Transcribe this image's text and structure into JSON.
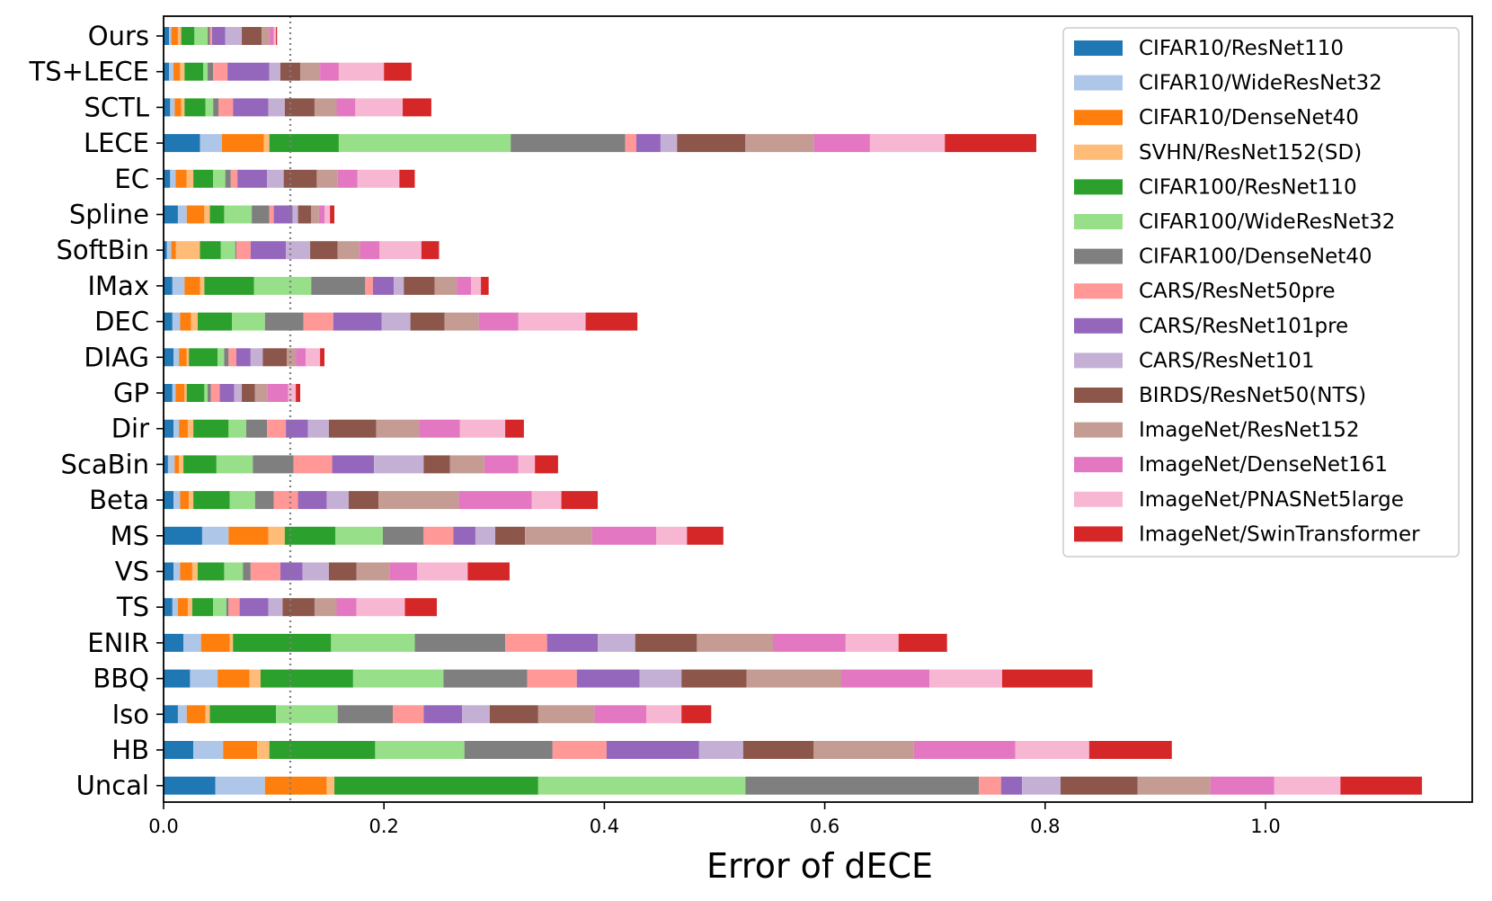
{
  "chart_data": {
    "type": "bar",
    "orientation": "horizontal",
    "stacked": true,
    "title": "",
    "xlabel": "Error of dECE",
    "ylabel": "",
    "xlim": [
      0,
      1.18
    ],
    "xticks": [
      0.0,
      0.2,
      0.4,
      0.6,
      0.8,
      1.0
    ],
    "xtick_labels": [
      "0.0",
      "0.2",
      "0.4",
      "0.6",
      "0.8",
      "1.0"
    ],
    "reference_line": {
      "x": 0.115,
      "style": "dotted",
      "color": "#7f7f7f"
    },
    "legend_position": "top-right",
    "categories": [
      "Ours",
      "TS+LECE",
      "SCTL",
      "LECE",
      "EC",
      "Spline",
      "SoftBin",
      "IMax",
      "DEC",
      "DIAG",
      "GP",
      "Dir",
      "ScaBin",
      "Beta",
      "MS",
      "VS",
      "TS",
      "ENIR",
      "BBQ",
      "Iso",
      "HB",
      "Uncal"
    ],
    "series": [
      {
        "name": "CIFAR10/ResNet110",
        "color": "#1f77b4",
        "values": [
          0.005,
          0.005,
          0.006,
          0.033,
          0.006,
          0.013,
          0.003,
          0.008,
          0.008,
          0.009,
          0.008,
          0.009,
          0.004,
          0.009,
          0.035,
          0.009,
          0.008,
          0.018,
          0.024,
          0.013,
          0.027,
          0.047
        ]
      },
      {
        "name": "CIFAR10/WideResNet32",
        "color": "#aec7e8",
        "values": [
          0.002,
          0.004,
          0.004,
          0.02,
          0.005,
          0.008,
          0.004,
          0.011,
          0.007,
          0.005,
          0.003,
          0.005,
          0.006,
          0.006,
          0.024,
          0.006,
          0.005,
          0.016,
          0.025,
          0.008,
          0.027,
          0.045
        ]
      },
      {
        "name": "CIFAR10/DenseNet40",
        "color": "#ff7f0e",
        "values": [
          0.006,
          0.006,
          0.006,
          0.038,
          0.01,
          0.016,
          0.004,
          0.014,
          0.01,
          0.007,
          0.008,
          0.008,
          0.004,
          0.008,
          0.036,
          0.011,
          0.009,
          0.026,
          0.029,
          0.017,
          0.031,
          0.056
        ]
      },
      {
        "name": "SVHN/ResNet152(SD)",
        "color": "#ffbb78",
        "values": [
          0.003,
          0.004,
          0.003,
          0.005,
          0.006,
          0.005,
          0.022,
          0.004,
          0.006,
          0.002,
          0.002,
          0.005,
          0.004,
          0.004,
          0.015,
          0.005,
          0.004,
          0.003,
          0.01,
          0.004,
          0.011,
          0.007
        ]
      },
      {
        "name": "CIFAR100/ResNet110",
        "color": "#2ca02c",
        "values": [
          0.012,
          0.017,
          0.019,
          0.063,
          0.018,
          0.013,
          0.019,
          0.045,
          0.031,
          0.026,
          0.016,
          0.032,
          0.03,
          0.033,
          0.046,
          0.024,
          0.019,
          0.089,
          0.084,
          0.06,
          0.096,
          0.185
        ]
      },
      {
        "name": "CIFAR100/WideResNet32",
        "color": "#98df8a",
        "values": [
          0.012,
          0.004,
          0.007,
          0.156,
          0.011,
          0.025,
          0.013,
          0.052,
          0.03,
          0.006,
          0.003,
          0.016,
          0.033,
          0.023,
          0.043,
          0.017,
          0.012,
          0.076,
          0.082,
          0.056,
          0.081,
          0.188
        ]
      },
      {
        "name": "CIFAR100/DenseNet40",
        "color": "#7f7f7f",
        "values": [
          0.002,
          0.005,
          0.005,
          0.104,
          0.005,
          0.016,
          0.001,
          0.049,
          0.035,
          0.004,
          0.003,
          0.019,
          0.037,
          0.017,
          0.037,
          0.007,
          0.002,
          0.082,
          0.076,
          0.05,
          0.08,
          0.212
        ]
      },
      {
        "name": "CARS/ResNet50pre",
        "color": "#ff9896",
        "values": [
          0.002,
          0.013,
          0.013,
          0.01,
          0.006,
          0.004,
          0.013,
          0.007,
          0.027,
          0.007,
          0.008,
          0.017,
          0.035,
          0.022,
          0.027,
          0.027,
          0.01,
          0.038,
          0.045,
          0.028,
          0.049,
          0.02
        ]
      },
      {
        "name": "CARS/ResNet101pre",
        "color": "#9467bd",
        "values": [
          0.012,
          0.038,
          0.032,
          0.022,
          0.027,
          0.017,
          0.032,
          0.019,
          0.044,
          0.013,
          0.013,
          0.02,
          0.038,
          0.026,
          0.02,
          0.02,
          0.026,
          0.046,
          0.057,
          0.035,
          0.084,
          0.019
        ]
      },
      {
        "name": "CARS/ResNet101",
        "color": "#c5b0d5",
        "values": [
          0.015,
          0.01,
          0.015,
          0.015,
          0.015,
          0.005,
          0.022,
          0.009,
          0.026,
          0.011,
          0.007,
          0.019,
          0.045,
          0.02,
          0.018,
          0.024,
          0.013,
          0.034,
          0.038,
          0.025,
          0.04,
          0.035
        ]
      },
      {
        "name": "BIRDS/ResNet50(NTS)",
        "color": "#8c564b",
        "values": [
          0.018,
          0.018,
          0.027,
          0.062,
          0.03,
          0.012,
          0.025,
          0.028,
          0.031,
          0.022,
          0.012,
          0.043,
          0.024,
          0.027,
          0.027,
          0.025,
          0.029,
          0.056,
          0.059,
          0.044,
          0.064,
          0.07
        ]
      },
      {
        "name": "ImageNet/ResNet152",
        "color": "#c49c94",
        "values": [
          0.007,
          0.018,
          0.02,
          0.062,
          0.019,
          0.007,
          0.02,
          0.02,
          0.031,
          0.008,
          0.011,
          0.039,
          0.031,
          0.073,
          0.061,
          0.03,
          0.02,
          0.069,
          0.086,
          0.051,
          0.091,
          0.066
        ]
      },
      {
        "name": "ImageNet/DenseNet161",
        "color": "#e377c2",
        "values": [
          0.004,
          0.017,
          0.017,
          0.051,
          0.018,
          0.005,
          0.018,
          0.013,
          0.036,
          0.009,
          0.019,
          0.037,
          0.031,
          0.066,
          0.058,
          0.025,
          0.018,
          0.066,
          0.08,
          0.047,
          0.092,
          0.058
        ]
      },
      {
        "name": "ImageNet/PNASNet5large",
        "color": "#f7b6d2",
        "values": [
          0.002,
          0.041,
          0.043,
          0.068,
          0.038,
          0.005,
          0.038,
          0.009,
          0.061,
          0.013,
          0.007,
          0.041,
          0.015,
          0.027,
          0.028,
          0.046,
          0.044,
          0.048,
          0.066,
          0.032,
          0.067,
          0.06
        ]
      },
      {
        "name": "ImageNet/SwinTransformer",
        "color": "#d62728",
        "values": [
          0.001,
          0.025,
          0.026,
          0.083,
          0.014,
          0.004,
          0.016,
          0.007,
          0.047,
          0.004,
          0.004,
          0.017,
          0.021,
          0.033,
          0.033,
          0.038,
          0.029,
          0.044,
          0.082,
          0.027,
          0.075,
          0.074
        ]
      }
    ]
  }
}
